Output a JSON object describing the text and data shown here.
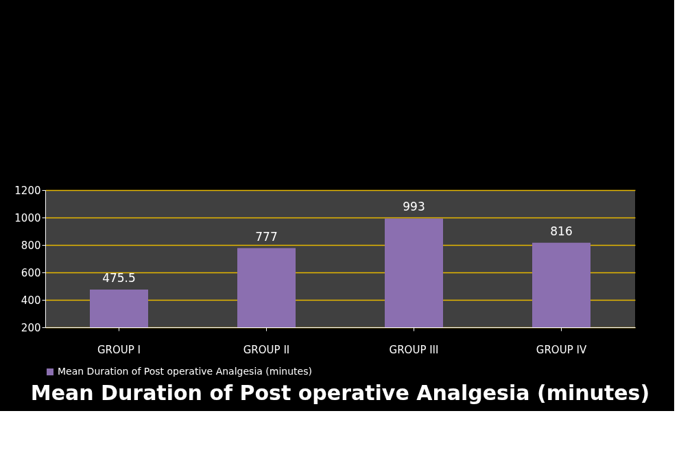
{
  "chart_data": {
    "type": "bar",
    "title": "Mean Duration of Post operative Analgesia  (minutes)",
    "categories": [
      "GROUP I",
      "GROUP II",
      "GROUP III",
      "GROUP IV"
    ],
    "series": [
      {
        "name": "Mean Duration of Post operative Analgesia (minutes)",
        "color": "#8b6fb0",
        "values": [
          475.5,
          777,
          993,
          816
        ]
      }
    ],
    "ylim": [
      200,
      1200
    ],
    "yticks": [
      200,
      400,
      600,
      800,
      1000,
      1200
    ],
    "grid": "y",
    "legend": "bottom",
    "data_labels": true
  }
}
